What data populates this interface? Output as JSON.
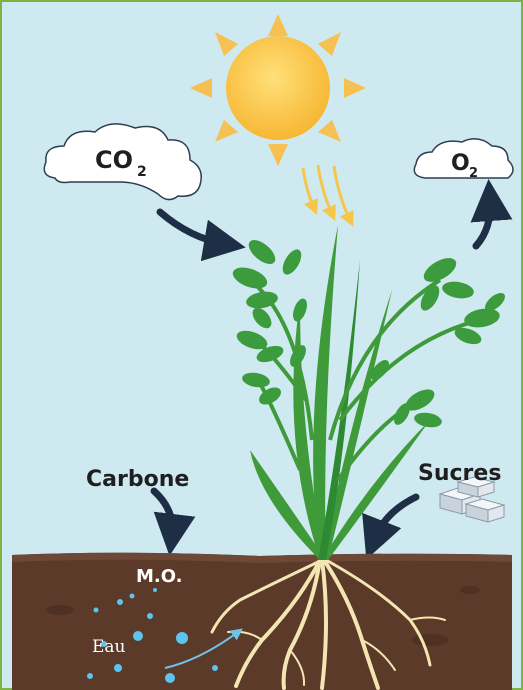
{
  "labels": {
    "co2": {
      "main": "CO",
      "sub": "2"
    },
    "o2": {
      "main": "O",
      "sub": "2"
    },
    "carbon": "Carbone",
    "sugars": "Sucres",
    "organic_matter": "M.O.",
    "water": "Eau"
  }
}
